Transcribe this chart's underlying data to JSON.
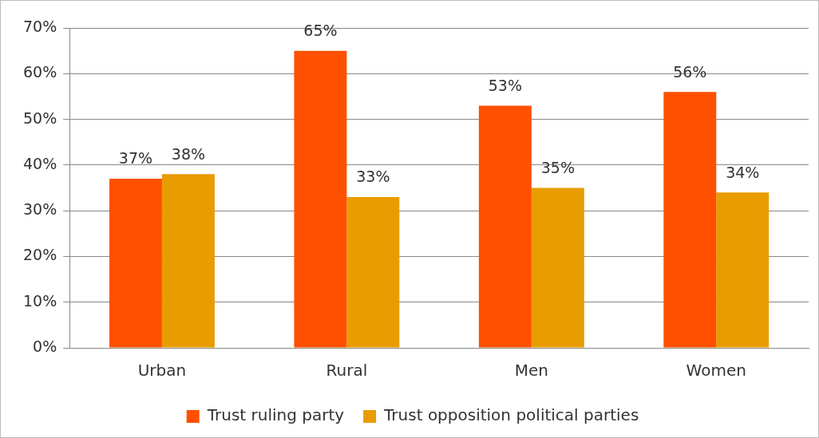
{
  "chart_data": {
    "type": "bar",
    "categories": [
      "Urban",
      "Rural",
      "Men",
      "Women"
    ],
    "series": [
      {
        "name": "Trust ruling party",
        "color": "#ff5000",
        "values": [
          37,
          65,
          53,
          56
        ],
        "value_labels": [
          "37%",
          "65%",
          "53%",
          "56%"
        ]
      },
      {
        "name": "Trust opposition political parties",
        "color": "#e89c00",
        "values": [
          38,
          33,
          35,
          34
        ],
        "value_labels": [
          "38%",
          "33%",
          "35%",
          "34%"
        ]
      }
    ],
    "ylim": [
      0,
      70
    ],
    "yticks": [
      {
        "value": 0,
        "label": "0%"
      },
      {
        "value": 10,
        "label": "10%"
      },
      {
        "value": 20,
        "label": "20%"
      },
      {
        "value": 30,
        "label": "30%"
      },
      {
        "value": 40,
        "label": "40%"
      },
      {
        "value": 50,
        "label": "50%"
      },
      {
        "value": 60,
        "label": "60%"
      },
      {
        "value": 70,
        "label": "70%"
      }
    ],
    "grid": "y",
    "legend": "bottom"
  }
}
